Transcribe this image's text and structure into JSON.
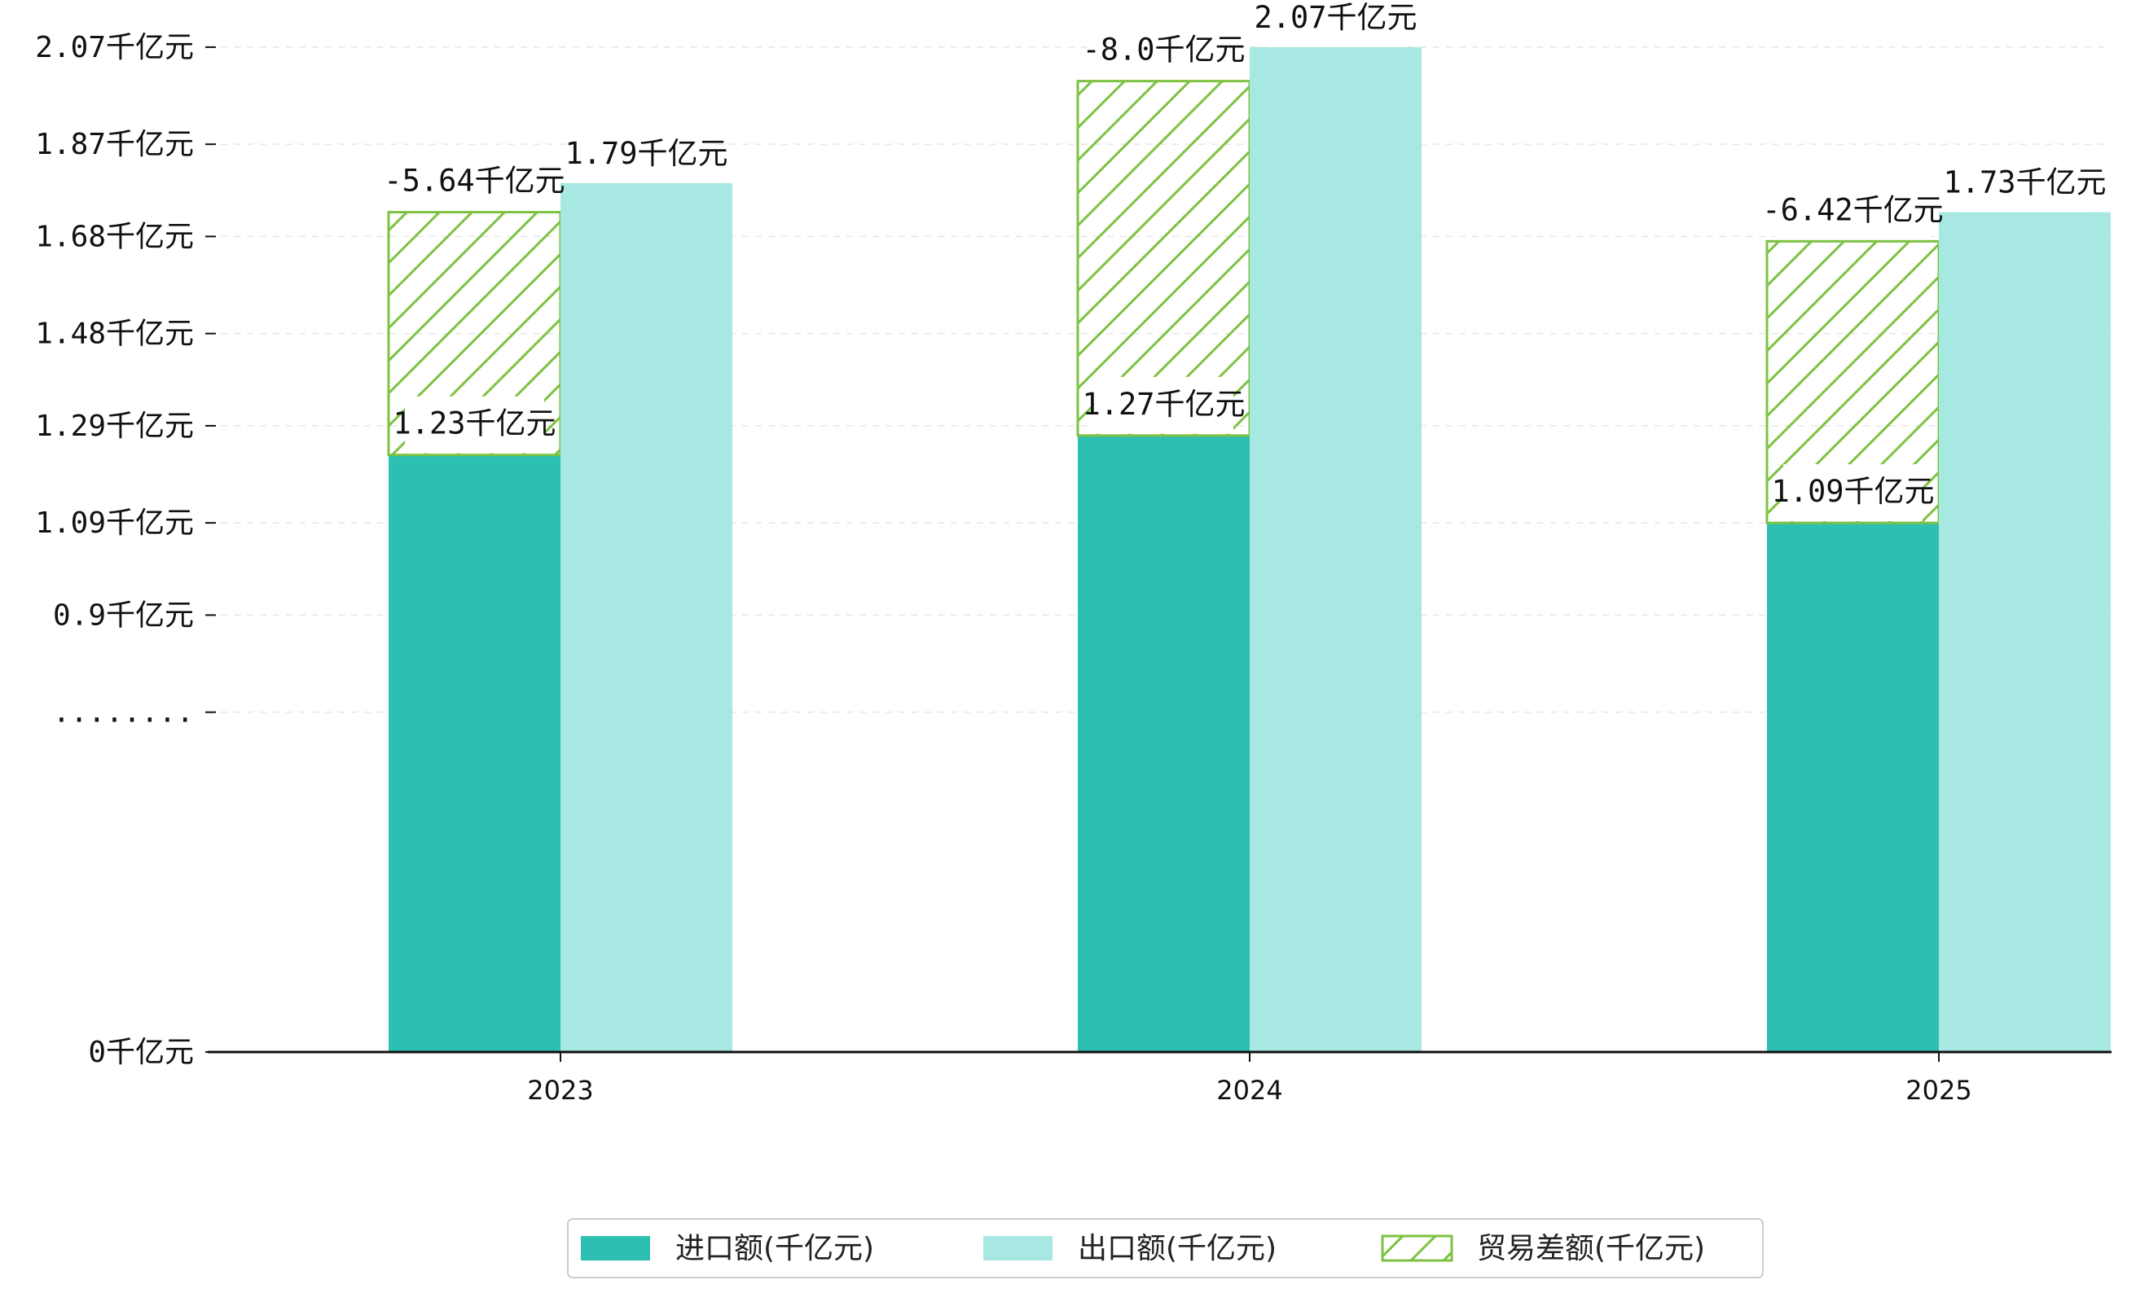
{
  "chart_data": {
    "type": "bar",
    "title": "",
    "xlabel": "",
    "ylabel": "",
    "categories": [
      "2023",
      "2024",
      "2025"
    ],
    "series": [
      {
        "name": "进口额(千亿元)",
        "values": [
          1.23,
          1.27,
          1.09
        ],
        "labels": [
          "1.23千亿元",
          "1.27千亿元",
          "1.09千亿元"
        ],
        "color": "#2ebfb3"
      },
      {
        "name": "出口额(千亿元)",
        "values": [
          1.79,
          2.07,
          1.73
        ],
        "labels": [
          "1.79千亿元",
          "2.07千亿元",
          "1.73千亿元"
        ],
        "color": "#a8e8e2"
      },
      {
        "name": "贸易差额(千亿元)",
        "values": [
          -5.64,
          -8.0,
          -6.42
        ],
        "labels": [
          "-5.64千亿元",
          "-8.0千亿元",
          "-6.42千亿元"
        ],
        "color": "#7dc242",
        "pattern": "hatch",
        "stack_top": [
          1.73,
          2.0,
          1.67
        ]
      }
    ],
    "y_ticks": [
      {
        "value": 0,
        "label": "0千亿元"
      },
      {
        "value": 0.7,
        "label": "........"
      },
      {
        "value": 0.9,
        "label": "0.9千亿元"
      },
      {
        "value": 1.09,
        "label": "1.09千亿元"
      },
      {
        "value": 1.29,
        "label": "1.29千亿元"
      },
      {
        "value": 1.48,
        "label": "1.48千亿元"
      },
      {
        "value": 1.68,
        "label": "1.68千亿元"
      },
      {
        "value": 1.87,
        "label": "1.87千亿元"
      },
      {
        "value": 2.07,
        "label": "2.07千亿元"
      }
    ],
    "ylim": [
      0,
      2.1
    ],
    "axis_break": {
      "real_low": 0,
      "real_high": 0.7,
      "display_low": 0,
      "display_high": 0.7
    },
    "grid": true,
    "legend_position": "bottom-center"
  }
}
